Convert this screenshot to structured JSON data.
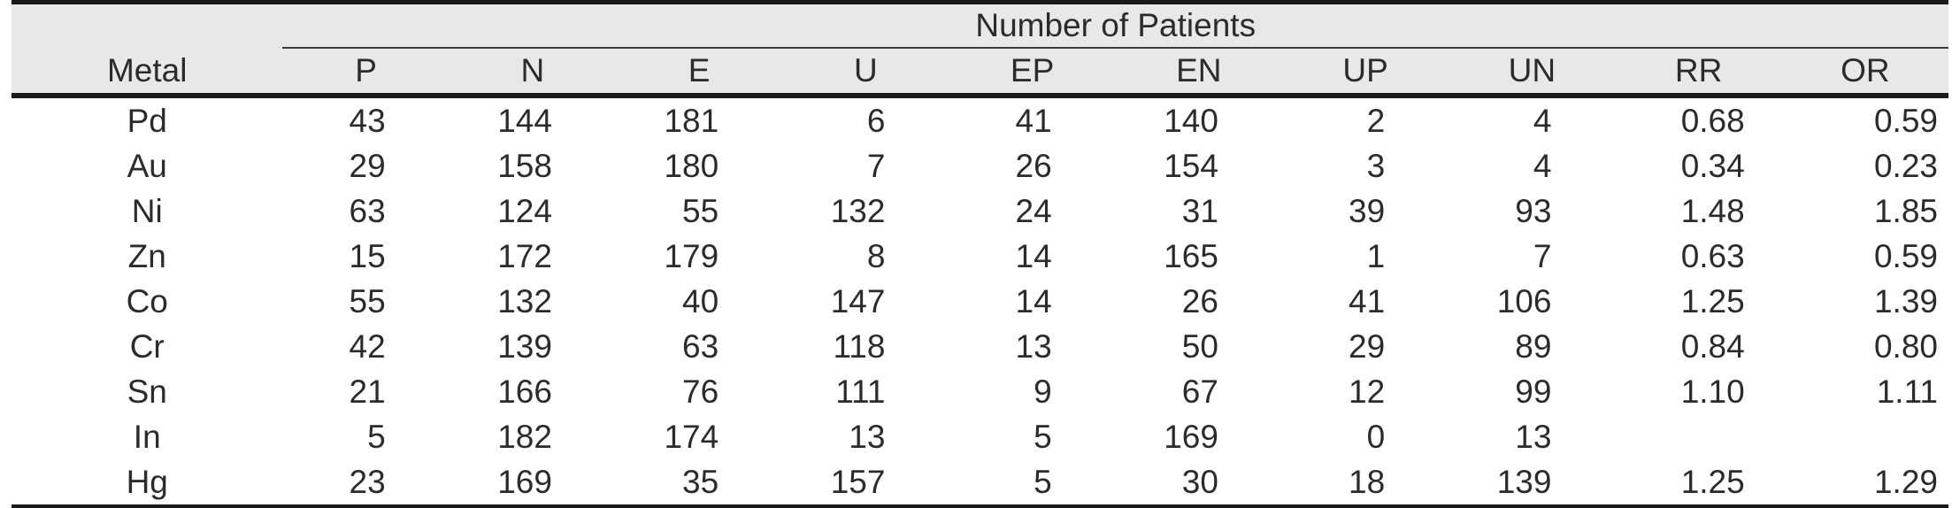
{
  "table": {
    "span_header": "Number of Patients",
    "metal_header": "Metal",
    "columns": [
      "P",
      "N",
      "E",
      "U",
      "EP",
      "EN",
      "UP",
      "UN",
      "RR",
      "OR"
    ],
    "rows": [
      {
        "metal": "Pd",
        "values": [
          "43",
          "144",
          "181",
          "6",
          "41",
          "140",
          "2",
          "4",
          "0.68",
          "0.59"
        ]
      },
      {
        "metal": "Au",
        "values": [
          "29",
          "158",
          "180",
          "7",
          "26",
          "154",
          "3",
          "4",
          "0.34",
          "0.23"
        ]
      },
      {
        "metal": "Ni",
        "values": [
          "63",
          "124",
          "55",
          "132",
          "24",
          "31",
          "39",
          "93",
          "1.48",
          "1.85"
        ]
      },
      {
        "metal": "Zn",
        "values": [
          "15",
          "172",
          "179",
          "8",
          "14",
          "165",
          "1",
          "7",
          "0.63",
          "0.59"
        ]
      },
      {
        "metal": "Co",
        "values": [
          "55",
          "132",
          "40",
          "147",
          "14",
          "26",
          "41",
          "106",
          "1.25",
          "1.39"
        ]
      },
      {
        "metal": "Cr",
        "values": [
          "42",
          "139",
          "63",
          "118",
          "13",
          "50",
          "29",
          "89",
          "0.84",
          "0.80"
        ]
      },
      {
        "metal": "Sn",
        "values": [
          "21",
          "166",
          "76",
          "111",
          "9",
          "67",
          "12",
          "99",
          "1.10",
          "1.11"
        ]
      },
      {
        "metal": "In",
        "values": [
          "5",
          "182",
          "174",
          "13",
          "5",
          "169",
          "0",
          "13",
          "",
          ""
        ]
      },
      {
        "metal": "Hg",
        "values": [
          "23",
          "169",
          "35",
          "157",
          "5",
          "30",
          "18",
          "139",
          "1.25",
          "1.29"
        ]
      }
    ]
  },
  "colors": {
    "header_background": "#e8e8e8",
    "rule": "#1b1b1b",
    "text": "#2b2b2b"
  }
}
